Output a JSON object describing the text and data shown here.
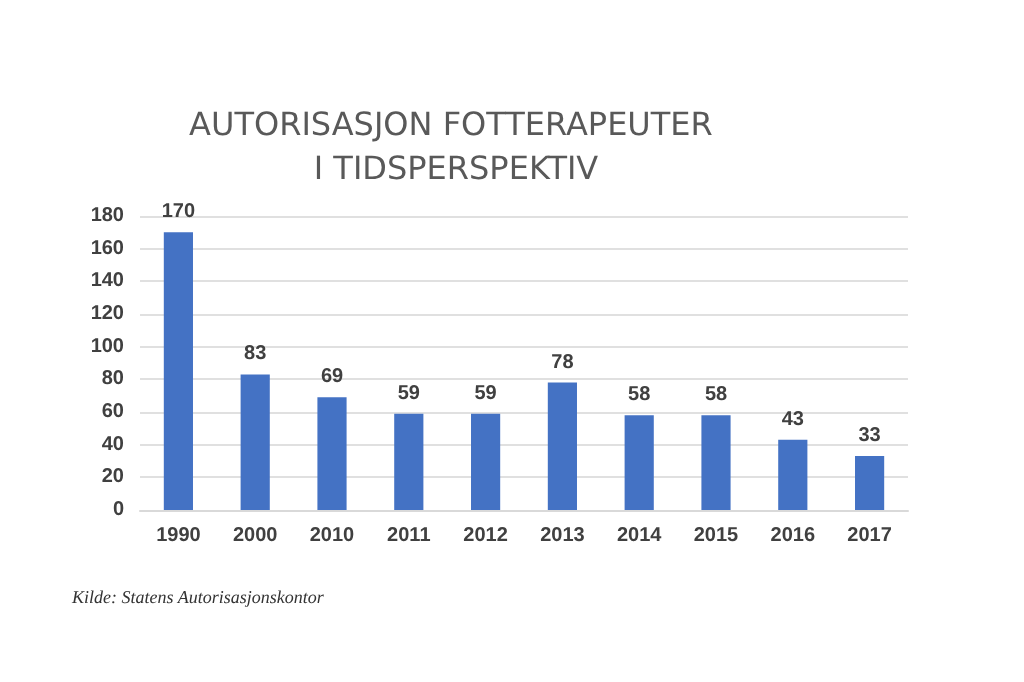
{
  "chart_data": {
    "type": "bar",
    "title": "AUTORISASJON FOTTERAPEUTER I TIDSPERSPEKTIV",
    "categories": [
      "1990",
      "2000",
      "2010",
      "2011",
      "2012",
      "2013",
      "2014",
      "2015",
      "2016",
      "2017"
    ],
    "values": [
      170,
      83,
      69,
      59,
      59,
      78,
      58,
      58,
      43,
      33
    ],
    "color": "#4472c4",
    "ylim": [
      0,
      180
    ],
    "yticks": [
      0,
      20,
      40,
      60,
      80,
      100,
      120,
      140,
      160,
      180
    ],
    "grid": "y",
    "data_labels": true,
    "annotations": [
      "Kilde: Statens Autorisasjonskontor"
    ]
  }
}
